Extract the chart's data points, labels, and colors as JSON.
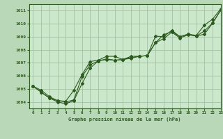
{
  "title": "Graphe pression niveau de la mer (hPa)",
  "bg_color": "#b8d8b8",
  "plot_bg_color": "#cce8cc",
  "line_color": "#2d5a1e",
  "grid_color": "#99bb99",
  "xlim": [
    -0.5,
    23
  ],
  "ylim": [
    1003.5,
    1011.5
  ],
  "yticks": [
    1004,
    1005,
    1006,
    1007,
    1008,
    1009,
    1010,
    1011
  ],
  "xticks": [
    0,
    1,
    2,
    3,
    4,
    5,
    6,
    7,
    8,
    9,
    10,
    11,
    12,
    13,
    14,
    15,
    16,
    17,
    18,
    19,
    20,
    21,
    22,
    23
  ],
  "series": [
    [
      1005.2,
      1004.9,
      1004.4,
      1004.1,
      1004.05,
      1004.9,
      1006.1,
      1007.1,
      1007.2,
      1007.5,
      1007.5,
      1007.25,
      1007.5,
      1007.5,
      1007.55,
      1009.05,
      1009.0,
      1009.5,
      1009.0,
      1009.2,
      1009.1,
      1009.9,
      1010.35,
      1011.15
    ],
    [
      1005.2,
      1004.75,
      1004.3,
      1004.0,
      1003.85,
      1004.1,
      1005.4,
      1006.6,
      1007.15,
      1007.25,
      1007.2,
      1007.25,
      1007.35,
      1007.5,
      1007.55,
      1008.55,
      1009.15,
      1009.4,
      1009.0,
      1009.2,
      1009.05,
      1009.45,
      1010.05,
      1011.05
    ],
    [
      1005.2,
      1004.75,
      1004.3,
      1004.1,
      1004.0,
      1004.15,
      1005.95,
      1006.85,
      1007.15,
      1007.3,
      1007.2,
      1007.25,
      1007.4,
      1007.5,
      1007.55,
      1008.55,
      1008.85,
      1009.35,
      1008.9,
      1009.15,
      1009.05,
      1009.2,
      1010.05,
      1011.05
    ]
  ]
}
